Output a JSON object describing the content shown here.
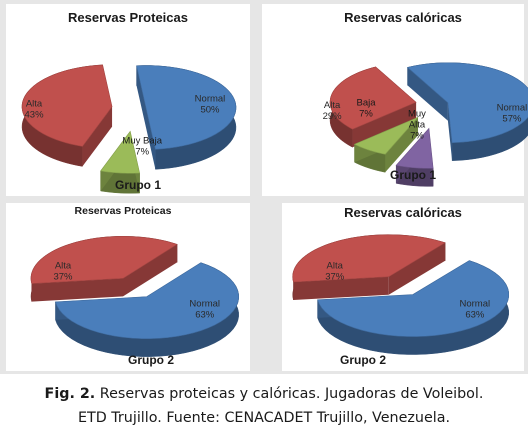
{
  "figure": {
    "caption_prefix": "Fig.  2.",
    "caption_line1": "Reservas proteicas y calóricas. Jugadoras de Voleibol.",
    "caption_line2": "ETD Trujillo. Fuente: CENACADET Trujillo, Venezuela."
  },
  "colors": {
    "normal": "#4a7ebb",
    "alta": "#c0504d",
    "baja": "#9bbb59",
    "muy_alta": "#8064a2"
  },
  "chart_data": [
    {
      "type": "pie",
      "title": "Reservas Proteicas",
      "group_label": "Grupo 1",
      "slices": [
        {
          "label": "Normal",
          "value": 50,
          "value_label": "50%",
          "color": "#4a7ebb"
        },
        {
          "label": "Muy Baja",
          "value": 7,
          "value_label": "7%",
          "color": "#9bbb59"
        },
        {
          "label": "Alta",
          "value": 43,
          "value_label": "43%",
          "color": "#c0504d"
        }
      ]
    },
    {
      "type": "pie",
      "title": "Reservas calóricas",
      "group_label": "Grupo 1",
      "slices": [
        {
          "label": "Normal",
          "value": 57,
          "value_label": "57%",
          "color": "#4a7ebb"
        },
        {
          "label": "Muy Alta",
          "value": 7,
          "value_label": "7%",
          "color": "#8064a2"
        },
        {
          "label": "Baja",
          "value": 7,
          "value_label": "7%",
          "color": "#9bbb59"
        },
        {
          "label": "Alta",
          "value": 29,
          "value_label": "29%",
          "color": "#c0504d"
        }
      ]
    },
    {
      "type": "pie",
      "title": "Reservas Proteicas",
      "group_label": "Grupo 2",
      "slices": [
        {
          "label": "Normal",
          "value": 63,
          "value_label": "63%",
          "color": "#4a7ebb"
        },
        {
          "label": "Alta",
          "value": 37,
          "value_label": "37%",
          "color": "#c0504d"
        }
      ]
    },
    {
      "type": "pie",
      "title": "Reservas calóricas",
      "group_label": "Grupo 2",
      "slices": [
        {
          "label": "Normal",
          "value": 63,
          "value_label": "63%",
          "color": "#4a7ebb"
        },
        {
          "label": "Alta",
          "value": 37,
          "value_label": "37%",
          "color": "#c0504d"
        }
      ]
    }
  ]
}
